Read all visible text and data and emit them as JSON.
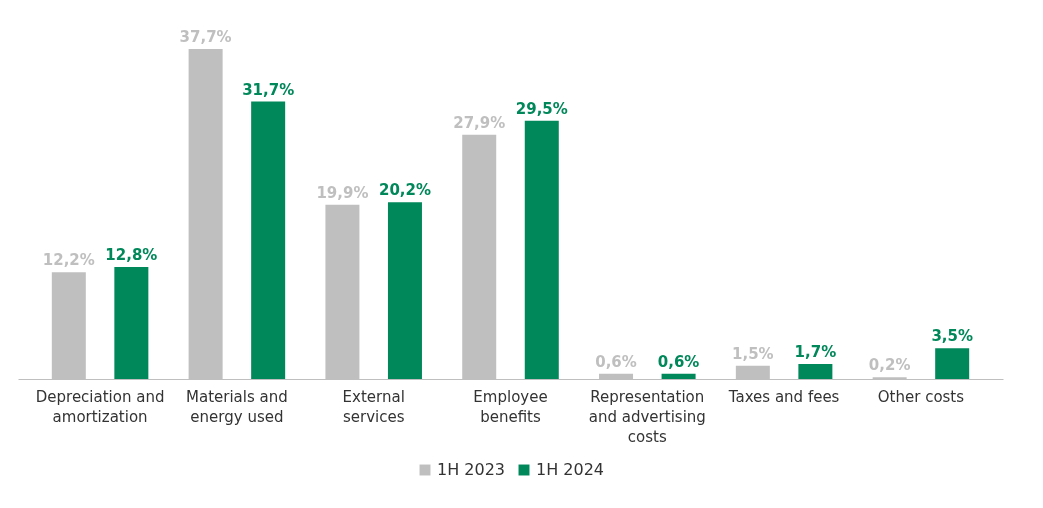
{
  "chart_data": {
    "type": "bar",
    "categories": [
      "Depreciation and amortization",
      "Materials and energy used",
      "External services",
      "Employee benefits",
      "Representation and advertising costs",
      "Taxes and fees",
      "Other costs"
    ],
    "series": [
      {
        "name": "1H 2023",
        "color": "#bfbfbf",
        "values": [
          12.2,
          37.7,
          19.9,
          27.9,
          0.6,
          1.5,
          0.2
        ],
        "value_labels": [
          "12,2%",
          "37,7%",
          "19,9%",
          "27,9%",
          "0,6%",
          "1,5%",
          "0,2%"
        ]
      },
      {
        "name": "1H 2024",
        "color": "#00875a",
        "values": [
          12.8,
          31.7,
          20.2,
          29.5,
          0.6,
          1.7,
          3.5
        ],
        "value_labels": [
          "12,8%",
          "31,7%",
          "20,2%",
          "29,5%",
          "0,6%",
          "1,7%",
          "3,5%"
        ]
      }
    ],
    "legend": "bottom"
  }
}
